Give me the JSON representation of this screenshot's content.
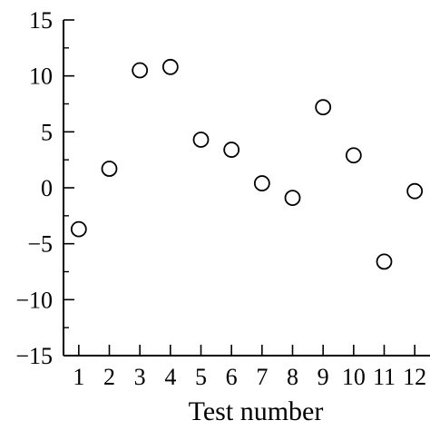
{
  "chart_data": {
    "type": "scatter",
    "title": "",
    "xlabel": "Test number",
    "ylabel": "",
    "xlim": [
      0.5,
      12.5
    ],
    "ylim": [
      -15,
      15
    ],
    "x_ticks": [
      1,
      2,
      3,
      4,
      5,
      6,
      7,
      8,
      9,
      10,
      11,
      12
    ],
    "x_tick_labels": [
      "1",
      "2",
      "3",
      "4",
      "5",
      "6",
      "7",
      "8",
      "9",
      "10",
      "11",
      "12"
    ],
    "y_ticks": [
      -15,
      -10,
      -5,
      0,
      5,
      10,
      15
    ],
    "y_tick_labels": [
      "−15",
      "−10",
      "−5",
      "0",
      "5",
      "10",
      "15"
    ],
    "grid": false,
    "legend": "none",
    "marker": "open-circle",
    "color": "#000000",
    "series": [
      {
        "x": [
          1,
          2,
          3,
          4,
          5,
          6,
          7,
          8,
          9,
          10,
          11,
          12
        ],
        "y": [
          -3.7,
          1.7,
          10.5,
          10.8,
          4.3,
          3.4,
          0.4,
          -0.9,
          7.2,
          2.9,
          -6.6,
          -0.3
        ]
      }
    ]
  }
}
